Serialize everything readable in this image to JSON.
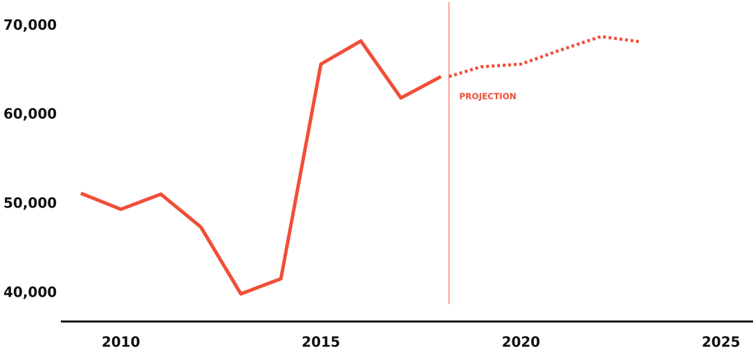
{
  "chart_data": {
    "type": "line",
    "series": [
      {
        "color": "#f04e37",
        "dashed": false,
        "x": [
          2009,
          2010,
          2011,
          2012,
          2013,
          2014,
          2015,
          2016,
          2017,
          2018
        ],
        "values": [
          51200,
          49400,
          51100,
          47400,
          39900,
          41600,
          65700,
          68300,
          61900,
          64300
        ]
      },
      {
        "color": "#f04e37",
        "dashed": true,
        "x": [
          2018.2,
          2019,
          2020,
          2021,
          2022,
          2023
        ],
        "values": [
          64300,
          65400,
          65700,
          67300,
          68800,
          68200
        ]
      }
    ],
    "annotation": {
      "text": "PROJECTION",
      "x": 2018.2,
      "color": "#f04e37"
    },
    "xlim": [
      2008.5,
      2025.8
    ],
    "xticks": [
      2010,
      2015,
      2020,
      2025
    ],
    "ylim": [
      36800,
      72900
    ],
    "yticks": [
      {
        "value": 40000,
        "label": "40,000"
      },
      {
        "value": 50000,
        "label": "50,000"
      },
      {
        "value": 60000,
        "label": "60,000"
      },
      {
        "value": 70000,
        "label": "70,000"
      }
    ],
    "grid": false
  }
}
